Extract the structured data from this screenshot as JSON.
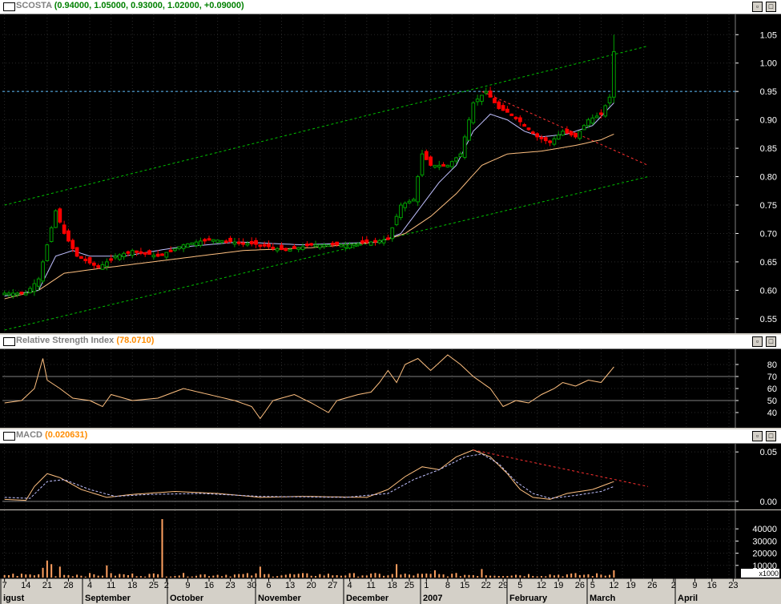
{
  "panes": {
    "price": {
      "title": "SCOSTA",
      "ohlc_text": "(0.94000, 1.05000, 0.93000, 1.02000, +0.09000)",
      "title_color": "#808080",
      "values_color": "#008000"
    },
    "rsi": {
      "title": "Relative Strength Index",
      "value_text": "(78.0710)",
      "title_color": "#808080",
      "value_color": "#ff8c00"
    },
    "macd": {
      "title": "MACD",
      "value_text": "(0.020631)",
      "title_color": "#808080",
      "value_color": "#ff8c00"
    },
    "volume": {
      "unit_label": "x1000"
    }
  },
  "window_buttons": {
    "restore": "▫",
    "maximize": "□"
  },
  "chart_data": [
    {
      "type": "candlestick",
      "id": "price",
      "ylim": [
        0.53,
        1.08
      ],
      "yticks": [
        0.55,
        0.6,
        0.65,
        0.7,
        0.75,
        0.8,
        0.85,
        0.9,
        0.95,
        1.0,
        1.05
      ],
      "ytick_labels": [
        "0.55",
        "0.60",
        "0.65",
        "0.70",
        "0.75",
        "0.80",
        "0.85",
        "0.90",
        "0.95",
        "1.00",
        "1.05"
      ],
      "horizontal_line": 0.95,
      "grid": true,
      "colors": {
        "up": "#00a000",
        "down": "#ff0000",
        "ma_short": "#c0c0ff",
        "ma_long": "#ffc080",
        "trend": "#00c000",
        "resistance": "#ff3030"
      },
      "close_anchors": [
        [
          0,
          0.595
        ],
        [
          5,
          0.595
        ],
        [
          8,
          0.62
        ],
        [
          10,
          0.68
        ],
        [
          12,
          0.74
        ],
        [
          14,
          0.7
        ],
        [
          17,
          0.66
        ],
        [
          22,
          0.64
        ],
        [
          26,
          0.66
        ],
        [
          30,
          0.67
        ],
        [
          36,
          0.66
        ],
        [
          42,
          0.68
        ],
        [
          48,
          0.69
        ],
        [
          54,
          0.685
        ],
        [
          60,
          0.68
        ],
        [
          66,
          0.67
        ],
        [
          72,
          0.68
        ],
        [
          80,
          0.68
        ],
        [
          86,
          0.685
        ],
        [
          90,
          0.69
        ],
        [
          93,
          0.75
        ],
        [
          96,
          0.76
        ],
        [
          98,
          0.84
        ],
        [
          100,
          0.82
        ],
        [
          104,
          0.82
        ],
        [
          107,
          0.84
        ],
        [
          110,
          0.93
        ],
        [
          113,
          0.95
        ],
        [
          116,
          0.92
        ],
        [
          119,
          0.91
        ],
        [
          122,
          0.89
        ],
        [
          125,
          0.87
        ],
        [
          128,
          0.86
        ],
        [
          131,
          0.88
        ],
        [
          134,
          0.87
        ],
        [
          137,
          0.9
        ],
        [
          140,
          0.91
        ],
        [
          142,
          0.94
        ],
        [
          143,
          1.02
        ]
      ],
      "ma_short_anchors": [
        [
          0,
          0.59
        ],
        [
          8,
          0.6
        ],
        [
          12,
          0.66
        ],
        [
          16,
          0.67
        ],
        [
          20,
          0.66
        ],
        [
          28,
          0.66
        ],
        [
          40,
          0.675
        ],
        [
          55,
          0.685
        ],
        [
          70,
          0.68
        ],
        [
          88,
          0.685
        ],
        [
          93,
          0.7
        ],
        [
          98,
          0.75
        ],
        [
          102,
          0.79
        ],
        [
          106,
          0.82
        ],
        [
          110,
          0.88
        ],
        [
          114,
          0.91
        ],
        [
          118,
          0.9
        ],
        [
          122,
          0.88
        ],
        [
          126,
          0.87
        ],
        [
          132,
          0.875
        ],
        [
          138,
          0.89
        ],
        [
          143,
          0.93
        ]
      ],
      "ma_long_anchors": [
        [
          0,
          0.585
        ],
        [
          8,
          0.6
        ],
        [
          14,
          0.63
        ],
        [
          24,
          0.64
        ],
        [
          40,
          0.655
        ],
        [
          56,
          0.67
        ],
        [
          72,
          0.675
        ],
        [
          88,
          0.685
        ],
        [
          94,
          0.7
        ],
        [
          100,
          0.73
        ],
        [
          106,
          0.77
        ],
        [
          112,
          0.82
        ],
        [
          118,
          0.84
        ],
        [
          126,
          0.845
        ],
        [
          134,
          0.855
        ],
        [
          140,
          0.865
        ],
        [
          143,
          0.875
        ]
      ],
      "trendlines": [
        {
          "color": "#00c000",
          "from": [
            0,
            0.75
          ],
          "to": [
            151,
            1.03
          ]
        },
        {
          "color": "#00c000",
          "from": [
            0,
            0.53
          ],
          "to": [
            151,
            0.8
          ]
        },
        {
          "color": "#ff3030",
          "from": [
            112,
            0.95
          ],
          "to": [
            151,
            0.82
          ]
        }
      ]
    },
    {
      "type": "line",
      "id": "rsi",
      "ylim": [
        30,
        90
      ],
      "yticks": [
        40,
        50,
        60,
        70,
        80
      ],
      "ytick_labels": [
        "40",
        "50",
        "60",
        "70",
        "80"
      ],
      "hlines": [
        50,
        70
      ],
      "color": "#ffc080",
      "anchors": [
        [
          0,
          48
        ],
        [
          4,
          50
        ],
        [
          7,
          60
        ],
        [
          9,
          85
        ],
        [
          10,
          67
        ],
        [
          13,
          60
        ],
        [
          16,
          52
        ],
        [
          20,
          50
        ],
        [
          23,
          45
        ],
        [
          25,
          55
        ],
        [
          30,
          50
        ],
        [
          36,
          52
        ],
        [
          42,
          60
        ],
        [
          48,
          55
        ],
        [
          54,
          50
        ],
        [
          58,
          45
        ],
        [
          60,
          35
        ],
        [
          63,
          50
        ],
        [
          68,
          55
        ],
        [
          72,
          48
        ],
        [
          76,
          40
        ],
        [
          78,
          50
        ],
        [
          83,
          55
        ],
        [
          86,
          57
        ],
        [
          88,
          65
        ],
        [
          90,
          75
        ],
        [
          92,
          65
        ],
        [
          94,
          80
        ],
        [
          97,
          85
        ],
        [
          100,
          75
        ],
        [
          104,
          88
        ],
        [
          107,
          80
        ],
        [
          110,
          70
        ],
        [
          114,
          60
        ],
        [
          117,
          45
        ],
        [
          120,
          50
        ],
        [
          123,
          48
        ],
        [
          126,
          55
        ],
        [
          129,
          60
        ],
        [
          131,
          65
        ],
        [
          134,
          62
        ],
        [
          137,
          67
        ],
        [
          140,
          65
        ],
        [
          143,
          78
        ]
      ]
    },
    {
      "type": "line",
      "id": "macd",
      "ylim": [
        -0.005,
        0.055
      ],
      "yticks": [
        0.0,
        0.05
      ],
      "ytick_labels": [
        "0.00",
        "0.05"
      ],
      "hlines": [
        0.0
      ],
      "series": [
        {
          "color": "#ffc080",
          "dash": false,
          "anchors": [
            [
              0,
              0.002
            ],
            [
              5,
              0.001
            ],
            [
              7,
              0.015
            ],
            [
              10,
              0.028
            ],
            [
              13,
              0.024
            ],
            [
              18,
              0.012
            ],
            [
              24,
              0.004
            ],
            [
              30,
              0.007
            ],
            [
              40,
              0.01
            ],
            [
              50,
              0.008
            ],
            [
              60,
              0.004
            ],
            [
              70,
              0.005
            ],
            [
              85,
              0.004
            ],
            [
              90,
              0.012
            ],
            [
              94,
              0.025
            ],
            [
              98,
              0.035
            ],
            [
              102,
              0.032
            ],
            [
              106,
              0.045
            ],
            [
              110,
              0.052
            ],
            [
              114,
              0.045
            ],
            [
              118,
              0.028
            ],
            [
              121,
              0.012
            ],
            [
              124,
              0.004
            ],
            [
              128,
              0.002
            ],
            [
              132,
              0.008
            ],
            [
              138,
              0.012
            ],
            [
              143,
              0.02
            ]
          ]
        },
        {
          "color": "#c0c0ff",
          "dash": true,
          "anchors": [
            [
              0,
              0.004
            ],
            [
              6,
              0.003
            ],
            [
              10,
              0.02
            ],
            [
              14,
              0.022
            ],
            [
              20,
              0.012
            ],
            [
              26,
              0.005
            ],
            [
              34,
              0.007
            ],
            [
              46,
              0.008
            ],
            [
              60,
              0.005
            ],
            [
              80,
              0.004
            ],
            [
              90,
              0.008
            ],
            [
              96,
              0.022
            ],
            [
              102,
              0.032
            ],
            [
              108,
              0.045
            ],
            [
              112,
              0.048
            ],
            [
              116,
              0.038
            ],
            [
              120,
              0.02
            ],
            [
              124,
              0.008
            ],
            [
              128,
              0.003
            ],
            [
              134,
              0.006
            ],
            [
              140,
              0.01
            ],
            [
              143,
              0.015
            ]
          ]
        }
      ],
      "resistance": {
        "color": "#ff3030",
        "from": [
          110,
          0.052
        ],
        "to": [
          151,
          0.015
        ]
      }
    },
    {
      "type": "bar",
      "id": "volume",
      "ylim": [
        0,
        50000
      ],
      "yticks": [
        10000,
        20000,
        30000,
        40000
      ],
      "ytick_labels": [
        "10000",
        "20000",
        "30000",
        "40000"
      ],
      "color": "#ffa060",
      "spikes": [
        [
          9,
          8000
        ],
        [
          10,
          14000
        ],
        [
          11,
          11000
        ],
        [
          13,
          9000
        ],
        [
          24,
          10000
        ],
        [
          37,
          48000
        ],
        [
          60,
          9000
        ],
        [
          92,
          11000
        ],
        [
          101,
          6000
        ],
        [
          112,
          7000
        ],
        [
          143,
          6000
        ]
      ]
    }
  ],
  "x_axis": {
    "labels": [
      {
        "i": 0,
        "text": "7"
      },
      {
        "i": 5,
        "text": "14"
      },
      {
        "i": 10,
        "text": "21"
      },
      {
        "i": 15,
        "text": "28"
      },
      {
        "i": 20,
        "text": "4"
      },
      {
        "i": 25,
        "text": "11"
      },
      {
        "i": 30,
        "text": "18"
      },
      {
        "i": 35,
        "text": "25"
      },
      {
        "i": 38,
        "text": "2"
      },
      {
        "i": 43,
        "text": "9"
      },
      {
        "i": 48,
        "text": "16"
      },
      {
        "i": 53,
        "text": "23"
      },
      {
        "i": 58,
        "text": "30"
      },
      {
        "i": 62,
        "text": "6"
      },
      {
        "i": 67,
        "text": "13"
      },
      {
        "i": 72,
        "text": "20"
      },
      {
        "i": 77,
        "text": "27"
      },
      {
        "i": 81,
        "text": "4"
      },
      {
        "i": 86,
        "text": "11"
      },
      {
        "i": 91,
        "text": "18"
      },
      {
        "i": 95,
        "text": "25"
      },
      {
        "i": 99,
        "text": "1"
      },
      {
        "i": 104,
        "text": "8"
      },
      {
        "i": 108,
        "text": "15"
      },
      {
        "i": 113,
        "text": "22"
      },
      {
        "i": 117,
        "text": "29"
      },
      {
        "i": 121,
        "text": "5"
      },
      {
        "i": 126,
        "text": "12"
      },
      {
        "i": 130,
        "text": "19"
      },
      {
        "i": 135,
        "text": "26"
      },
      {
        "i": 138,
        "text": "5"
      },
      {
        "i": 143,
        "text": "12"
      },
      {
        "i": 147,
        "text": "19"
      },
      {
        "i": 152,
        "text": "26"
      },
      {
        "i": 157,
        "text": "2"
      },
      {
        "i": 162,
        "text": "9"
      },
      {
        "i": 166,
        "text": "16"
      },
      {
        "i": 171,
        "text": "23"
      }
    ],
    "months": [
      {
        "x": 4,
        "text": "igust"
      },
      {
        "x": 106,
        "text": "September"
      },
      {
        "x": 212,
        "text": "October"
      },
      {
        "x": 322,
        "text": "November"
      },
      {
        "x": 432,
        "text": "December"
      },
      {
        "x": 528,
        "text": "2007"
      },
      {
        "x": 636,
        "text": "February"
      },
      {
        "x": 736,
        "text": "March"
      },
      {
        "x": 846,
        "text": "April"
      }
    ]
  }
}
